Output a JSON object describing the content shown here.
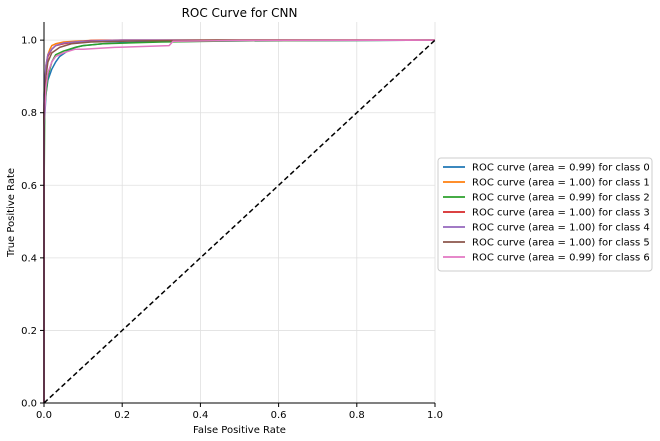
{
  "chart_data": {
    "type": "line",
    "title": "ROC Curve for CNN",
    "xlabel": "False Positive Rate",
    "ylabel": "True Positive Rate",
    "xlim": [
      0,
      1
    ],
    "ylim": [
      0,
      1.05
    ],
    "xticks": [
      "0.0",
      "0.2",
      "0.4",
      "0.6",
      "0.8",
      "1.0"
    ],
    "yticks": [
      "0.0",
      "0.2",
      "0.4",
      "0.6",
      "0.8",
      "1.0"
    ],
    "grid": true,
    "legend_position": "center-right, outside the axes",
    "diagonal": {
      "x": [
        0,
        1
      ],
      "y": [
        0,
        1
      ],
      "style": "dashed",
      "color": "#000000"
    },
    "series": [
      {
        "name": "ROC curve (area = 0.99) for class 0",
        "color": "#1f77b4",
        "x": [
          0,
          0,
          0.005,
          0.01,
          0.02,
          0.03,
          0.04,
          0.06,
          0.08,
          0.1,
          0.15,
          0.2,
          0.3,
          0.5,
          1.0
        ],
        "y": [
          0,
          0.75,
          0.85,
          0.89,
          0.92,
          0.94,
          0.955,
          0.97,
          0.98,
          0.985,
          0.99,
          0.993,
          0.996,
          0.998,
          1.0
        ]
      },
      {
        "name": "ROC curve (area = 1.00) for class 1",
        "color": "#ff7f0e",
        "x": [
          0,
          0,
          0.005,
          0.01,
          0.015,
          0.02,
          0.03,
          0.05,
          0.08,
          0.12,
          0.2,
          1.0
        ],
        "y": [
          0,
          0.8,
          0.93,
          0.96,
          0.975,
          0.985,
          0.99,
          0.995,
          0.997,
          0.999,
          1.0,
          1.0
        ]
      },
      {
        "name": "ROC curve (area = 0.99) for class 2",
        "color": "#2ca02c",
        "x": [
          0,
          0,
          0.002,
          0.01,
          0.02,
          0.03,
          0.05,
          0.08,
          0.1,
          0.15,
          0.3,
          0.5,
          1.0
        ],
        "y": [
          0,
          0.56,
          0.82,
          0.9,
          0.94,
          0.96,
          0.97,
          0.98,
          0.985,
          0.99,
          0.995,
          0.998,
          1.0
        ]
      },
      {
        "name": "ROC curve (area = 1.00) for class 3",
        "color": "#d62728",
        "x": [
          0,
          0,
          0.005,
          0.01,
          0.02,
          0.03,
          0.05,
          0.08,
          0.12,
          0.2,
          1.0
        ],
        "y": [
          0,
          0.82,
          0.92,
          0.955,
          0.975,
          0.985,
          0.99,
          0.995,
          0.999,
          1.0,
          1.0
        ]
      },
      {
        "name": "ROC curve (area = 1.00) for class 4",
        "color": "#9467bd",
        "x": [
          0,
          0,
          0.005,
          0.01,
          0.02,
          0.03,
          0.05,
          0.1,
          0.2,
          1.0
        ],
        "y": [
          0,
          0.85,
          0.93,
          0.96,
          0.975,
          0.985,
          0.992,
          0.997,
          1.0,
          1.0
        ]
      },
      {
        "name": "ROC curve (area = 1.00) for class 5",
        "color": "#8c564b",
        "x": [
          0,
          0,
          0.005,
          0.01,
          0.02,
          0.04,
          0.07,
          0.12,
          0.25,
          0.44,
          1.0
        ],
        "y": [
          0,
          0.8,
          0.9,
          0.94,
          0.965,
          0.98,
          0.99,
          0.995,
          0.998,
          1.0,
          1.0
        ]
      },
      {
        "name": "ROC curve (area = 0.99) for class 6",
        "color": "#e377c2",
        "x": [
          0,
          0,
          0.005,
          0.01,
          0.02,
          0.03,
          0.05,
          0.08,
          0.1,
          0.18,
          0.32,
          0.33,
          0.5,
          1.0
        ],
        "y": [
          0,
          0.76,
          0.87,
          0.91,
          0.94,
          0.955,
          0.965,
          0.975,
          0.975,
          0.98,
          0.985,
          0.997,
          0.999,
          1.0
        ]
      }
    ]
  }
}
